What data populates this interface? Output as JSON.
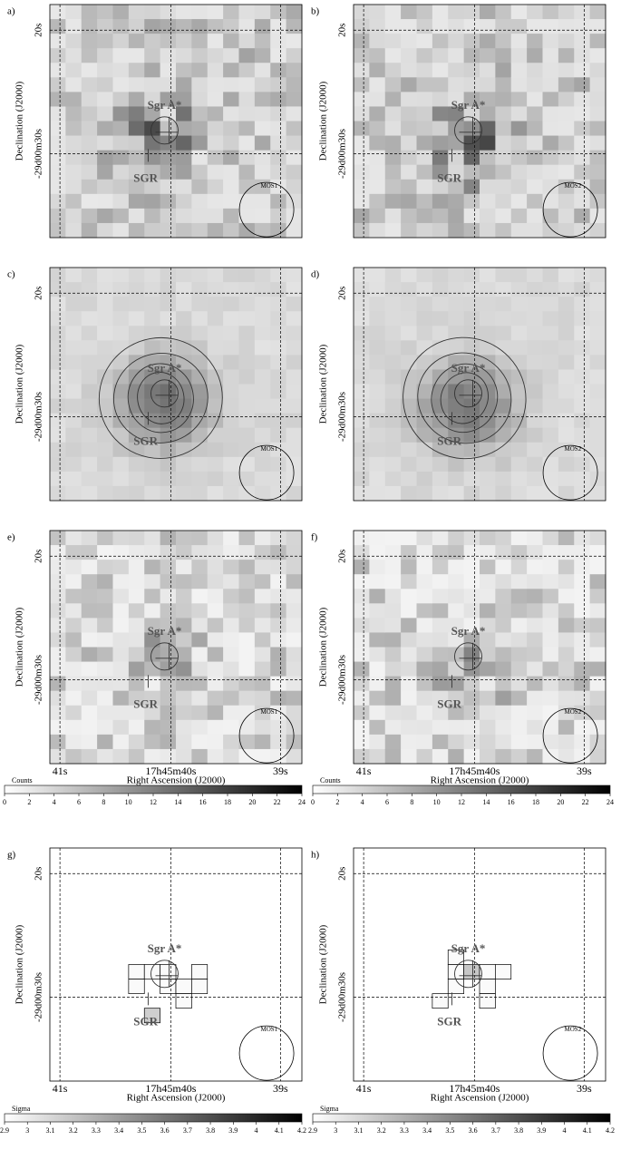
{
  "panels": [
    {
      "label": "a)",
      "detector": "MOS1"
    },
    {
      "label": "b)",
      "detector": "MOS2"
    },
    {
      "label": "c)",
      "detector": "MOS1"
    },
    {
      "label": "d)",
      "detector": "MOS2"
    },
    {
      "label": "e)",
      "detector": "MOS1"
    },
    {
      "label": "f)",
      "detector": "MOS2"
    },
    {
      "label": "g)",
      "detector": "MOS1"
    },
    {
      "label": "h)",
      "detector": "MOS2"
    }
  ],
  "y_ticks": [
    "20s",
    "-29d00m30s"
  ],
  "y_axis_label": "Declination (J2000)",
  "x_ticks": [
    "41s",
    "17h45m40s",
    "39s"
  ],
  "x_axis_label": "Right Ascension (J2000)",
  "source_labels": [
    "Sgr A*",
    "SGR"
  ],
  "colorbars": [
    {
      "label": "Counts",
      "ticks": [
        0,
        2,
        4,
        6,
        8,
        10,
        12,
        14,
        16,
        18,
        20,
        22,
        24
      ]
    },
    {
      "label": "Sigma",
      "ticks": [
        2.9,
        3,
        3.1,
        3.2,
        3.3,
        3.4,
        3.5,
        3.6,
        3.7,
        3.8,
        3.9,
        4,
        4.1,
        4.2
      ]
    }
  ]
}
